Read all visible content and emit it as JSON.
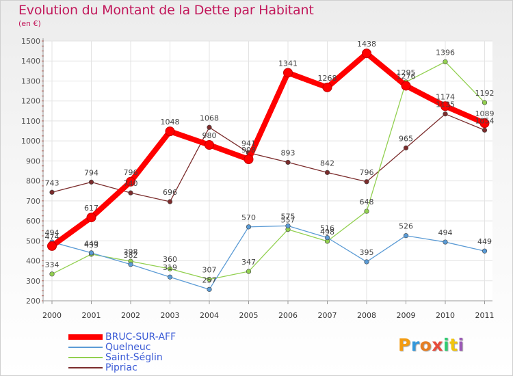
{
  "title": "Evolution du Montant de la Dette par Habitant",
  "unit": "(en €)",
  "logo": {
    "letters": [
      "P",
      "r",
      "o",
      "x",
      "i",
      "t",
      "i"
    ],
    "colors": [
      "#f39c12",
      "#3498db",
      "#e67e22",
      "#e74c3c",
      "#2ecc71",
      "#f1c40f",
      "#9b59b6"
    ]
  },
  "chart_data": {
    "type": "line",
    "x": [
      "2000",
      "2001",
      "2002",
      "2003",
      "2004",
      "2005",
      "2006",
      "2007",
      "2008",
      "2009",
      "2010",
      "2011"
    ],
    "ylim": [
      200,
      1500
    ],
    "yticks": [
      "200",
      "300",
      "400",
      "500",
      "600",
      "700",
      "800",
      "900",
      "1000",
      "1100",
      "1200",
      "1300",
      "1400",
      "1500"
    ],
    "grid": true,
    "legend_position": "bottom-left",
    "series": [
      {
        "name": "BRUC-SUR-AFF",
        "color": "#ff0000",
        "values": [
          474,
          617,
          796,
          1048,
          980,
          908,
          1341,
          1268,
          1438,
          1276,
          1174,
          1089
        ]
      },
      {
        "name": "Quelneuc",
        "color": "#5b9bd5",
        "values": [
          494,
          440,
          382,
          319,
          257,
          570,
          575,
          516,
          395,
          526,
          494,
          449
        ]
      },
      {
        "name": "Saint-Séglin",
        "color": "#92d050",
        "values": [
          334,
          433,
          398,
          360,
          307,
          347,
          557,
          498,
          648,
          1295,
          1396,
          1192
        ]
      },
      {
        "name": "Pipriac",
        "color": "#7b2c2c",
        "values": [
          743,
          794,
          740,
          696,
          1068,
          941,
          893,
          842,
          796,
          965,
          1135,
          1054
        ]
      }
    ]
  }
}
